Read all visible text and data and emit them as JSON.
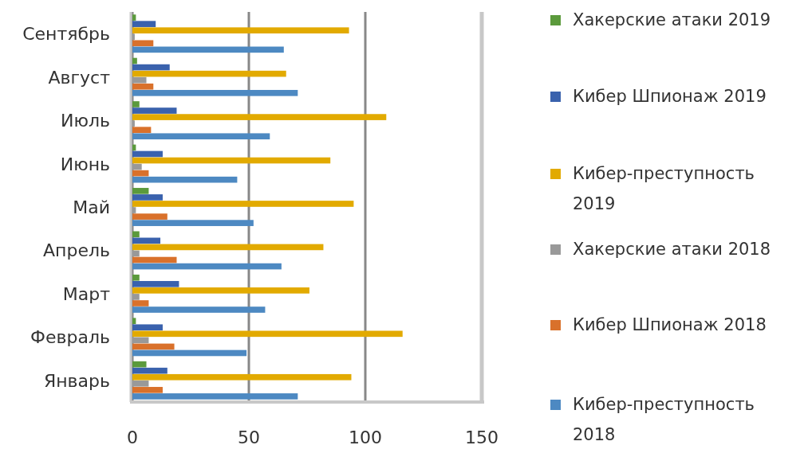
{
  "chart_data": {
    "type": "bar",
    "orientation": "horizontal",
    "categories": [
      "Сентябрь",
      "Август",
      "Июль",
      "Июнь",
      "Май",
      "Апрель",
      "Март",
      "Февраль",
      "Январь"
    ],
    "series": [
      {
        "name": "Хакерские атаки 2019",
        "color": "#5b9a3c",
        "values": [
          1.5,
          2,
          3,
          1.5,
          7,
          3,
          3,
          1.5,
          6
        ]
      },
      {
        "name": "Кибер Шпионаж 2019",
        "color": "#3a62ad",
        "values": [
          10,
          16,
          19,
          13,
          13,
          12,
          20,
          13,
          15
        ]
      },
      {
        "name": "Кибер-преступность 2019",
        "color": "#e2aa00",
        "values": [
          93,
          66,
          109,
          85,
          95,
          82,
          76,
          116,
          94
        ]
      },
      {
        "name": "Хакерские атаки 2018",
        "color": "#999999",
        "values": [
          1,
          6,
          1,
          4,
          1.5,
          3,
          3,
          7,
          7
        ]
      },
      {
        "name": "Кибер Шпионаж 2018",
        "color": "#d9712b",
        "values": [
          9,
          9,
          8,
          7,
          15,
          19,
          7,
          18,
          13
        ]
      },
      {
        "name": "Кибер-преступность 2018",
        "color": "#4d89c2",
        "values": [
          65,
          71,
          59,
          45,
          52,
          64,
          57,
          49,
          71
        ]
      }
    ],
    "xlim": [
      0,
      150
    ],
    "xticks": [
      0,
      50,
      100,
      150
    ],
    "grid": "x",
    "legend": "right"
  }
}
